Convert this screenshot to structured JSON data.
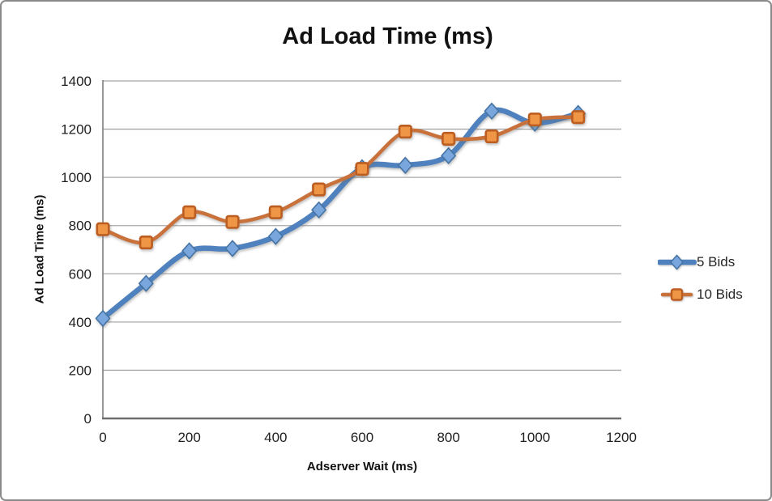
{
  "window": {
    "background": "#ffffff",
    "border_color": "#8a8a8a"
  },
  "chart_data": {
    "type": "line",
    "title": "Ad Load Time (ms)",
    "xlabel": "Adserver Wait (ms)",
    "ylabel": "Ad Load Time (ms)",
    "x": [
      0,
      100,
      200,
      300,
      400,
      500,
      600,
      700,
      800,
      900,
      1000,
      1100
    ],
    "series": [
      {
        "name": "5 Bids",
        "marker": "diamond",
        "line_color": "#4e81bd",
        "marker_fill": "#79a7dd",
        "marker_border": "#4473a4",
        "line_width": 6.5,
        "values": [
          415,
          560,
          695,
          705,
          755,
          865,
          1040,
          1050,
          1090,
          1275,
          1225,
          1265
        ]
      },
      {
        "name": "10 Bids",
        "marker": "square",
        "line_color": "#c9713b",
        "marker_fill": "#ef9546",
        "marker_border": "#bc5e21",
        "line_width": 4.5,
        "values": [
          785,
          730,
          855,
          815,
          855,
          950,
          1035,
          1190,
          1160,
          1170,
          1240,
          1250
        ]
      }
    ],
    "xlim": [
      0,
      1200
    ],
    "ylim": [
      0,
      1400
    ],
    "x_ticks": [
      0,
      200,
      400,
      600,
      800,
      1000,
      1200
    ],
    "y_ticks": [
      0,
      200,
      400,
      600,
      800,
      1000,
      1200,
      1400
    ],
    "grid": true,
    "smooth": true,
    "legend_position": "right",
    "gridline_color": "#a8a8a8",
    "axis_color": "#7f7f7f",
    "tick_label_color": "#1f1f1f"
  }
}
